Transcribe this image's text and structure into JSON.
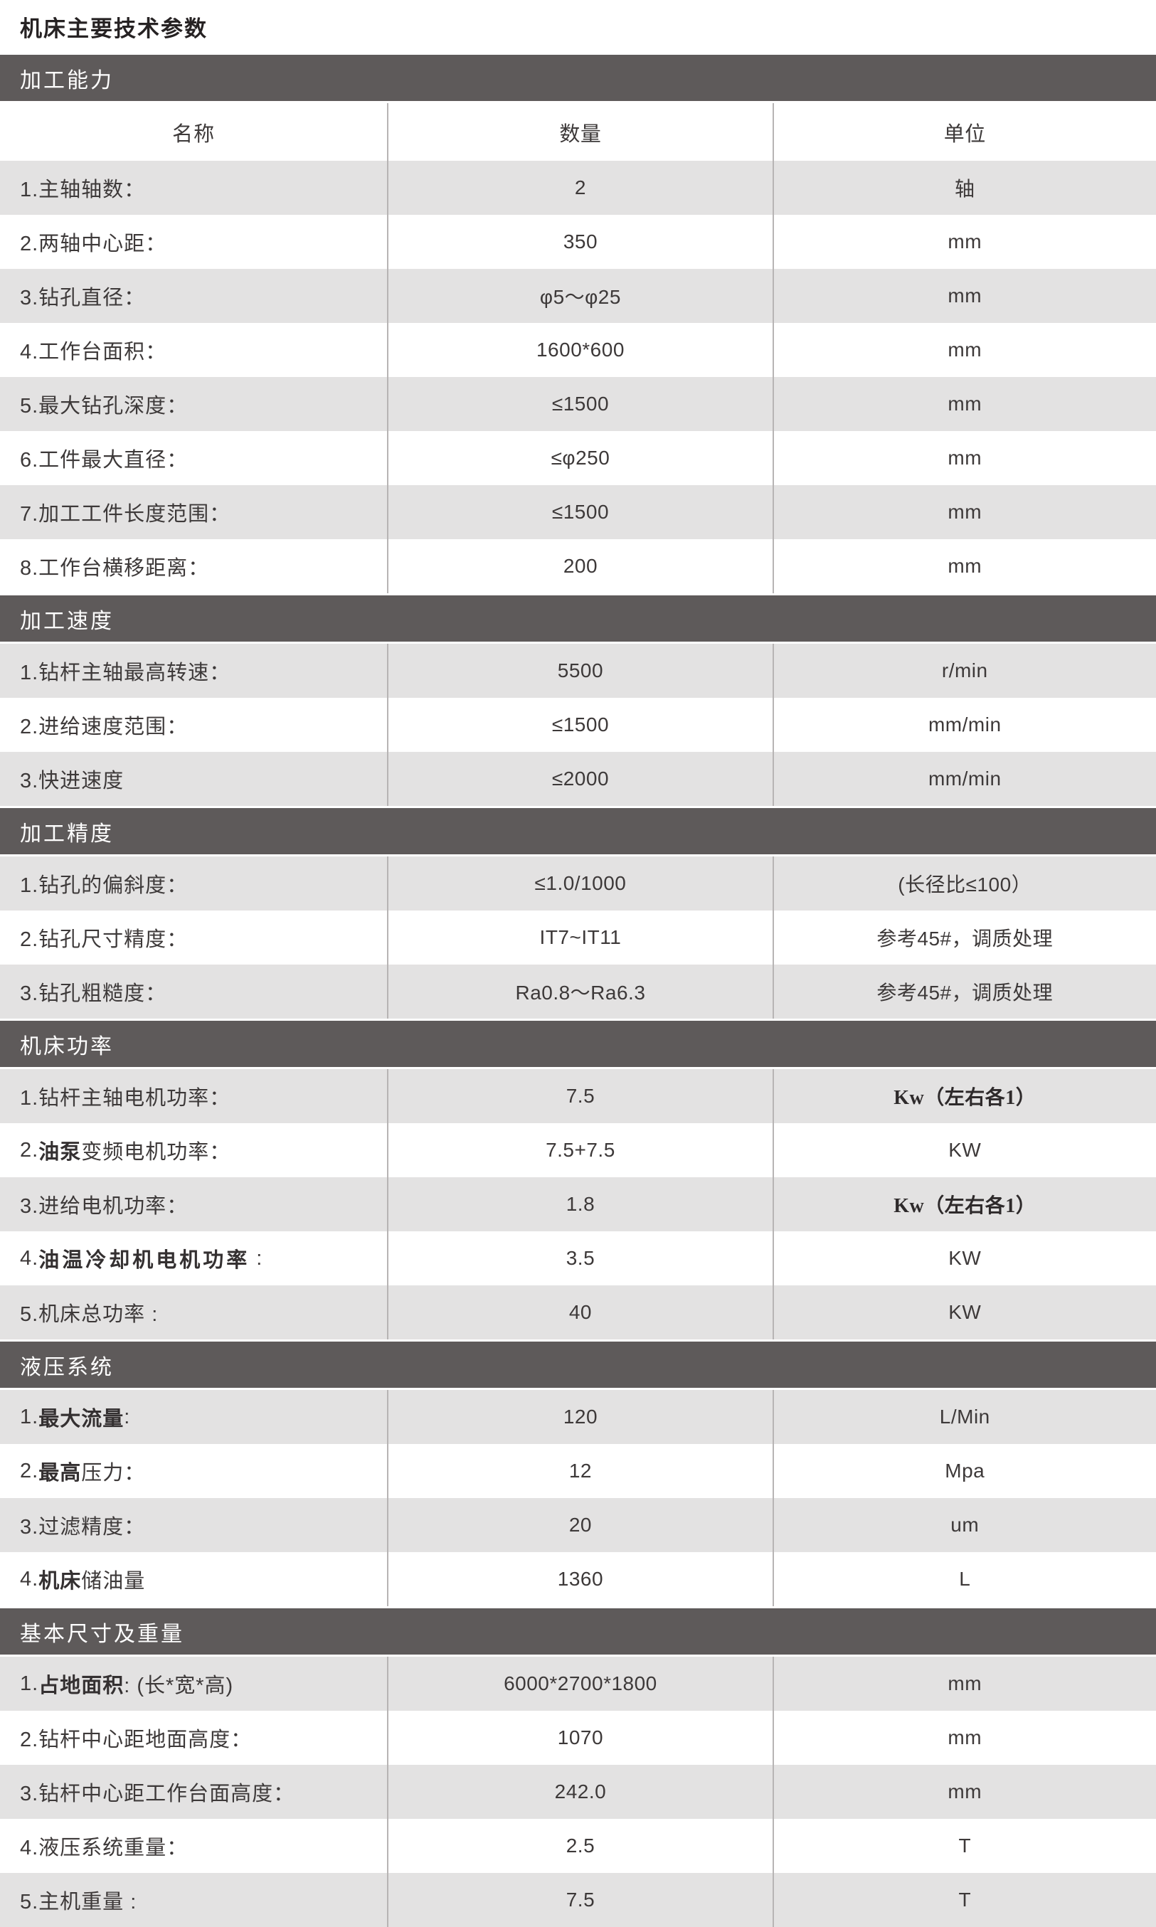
{
  "page": {
    "title": "机床主要技术参数"
  },
  "colors": {
    "section_bar_bg": "#5e5a5a",
    "section_bar_text": "#ffffff",
    "row_gray_bg": "#e3e2e2",
    "row_white_bg": "#ffffff",
    "divider_line": "#b7b4b4",
    "text": "#3d3939"
  },
  "table": {
    "header": {
      "name": "名称",
      "qty": "数量",
      "unit": "单位"
    },
    "sections": [
      {
        "title": "加工能力",
        "has_header": true,
        "rows": [
          {
            "label": [
              "1.主轴轴数："
            ],
            "value": "2",
            "unit": "轴"
          },
          {
            "label": [
              "2.两轴中心距："
            ],
            "value": "350",
            "unit": "mm"
          },
          {
            "label": [
              "3.钻孔直径："
            ],
            "value": "φ5～φ25",
            "unit": "mm"
          },
          {
            "label": [
              "4.工作台面积："
            ],
            "value": "1600*600",
            "unit": "mm"
          },
          {
            "label": [
              "5.最大钻孔深度："
            ],
            "value": "≤1500",
            "unit": "mm"
          },
          {
            "label": [
              "6.工件最大直径："
            ],
            "value": "≤φ250",
            "unit": "mm"
          },
          {
            "label": [
              "7.加工工件长度范围："
            ],
            "value": "≤1500",
            "unit": "mm"
          },
          {
            "label": [
              "8.工作台横移距离："
            ],
            "value": "200",
            "unit": "mm"
          }
        ]
      },
      {
        "title": "加工速度",
        "has_header": false,
        "rows": [
          {
            "label": [
              "1.钻杆主轴最高转速："
            ],
            "value": "5500",
            "unit": "r/min"
          },
          {
            "label": [
              "2.进给速度范围："
            ],
            "value": "≤1500",
            "unit": "mm/min"
          },
          {
            "label": [
              "3.快进速度"
            ],
            "value": "≤2000",
            "unit": "mm/min"
          }
        ]
      },
      {
        "title": "加工精度",
        "has_header": false,
        "rows": [
          {
            "label": [
              "1.钻孔的偏斜度："
            ],
            "value": "≤1.0/1000",
            "unit": "(长径比≤100）"
          },
          {
            "label": [
              "2.钻孔尺寸精度："
            ],
            "value": "IT7~IT11",
            "unit": "参考45#，调质处理"
          },
          {
            "label": [
              "3.钻孔粗糙度："
            ],
            "value": "Ra0.8～Ra6.3",
            "unit": "参考45#，调质处理"
          }
        ]
      },
      {
        "title": "机床功率",
        "has_header": false,
        "rows": [
          {
            "label": [
              "1.钻杆主轴电机功率："
            ],
            "value": "7.5",
            "unit": "Kw（左右各1）",
            "unit_serif": true
          },
          {
            "label": [
              "2.",
              {
                "t": "油泵",
                "b": true
              },
              "变频电机功率："
            ],
            "value": "7.5+7.5",
            "unit": "KW"
          },
          {
            "label": [
              "3.进给电机功率："
            ],
            "value": "1.8",
            "unit": "Kw（左右各1）",
            "unit_serif": true
          },
          {
            "label": [
              "4.",
              {
                "t": "油温冷却机电机功率",
                "b": true,
                "sp": true
              },
              " :"
            ],
            "value": "3.5",
            "unit": "KW"
          },
          {
            "label": [
              "5.机床总功率 :"
            ],
            "value": "40",
            "unit": "KW"
          }
        ]
      },
      {
        "title": "液压系统",
        "has_header": false,
        "rows": [
          {
            "label": [
              "1.",
              {
                "t": "最大流量",
                "b": true
              },
              ":"
            ],
            "value": "120",
            "unit": "L/Min"
          },
          {
            "label": [
              "2.",
              {
                "t": "最高",
                "b": true
              },
              "压力："
            ],
            "value": "12",
            "unit": "Mpa"
          },
          {
            "label": [
              "3.过滤精度："
            ],
            "value": "20",
            "unit": "um"
          },
          {
            "label": [
              "4.",
              {
                "t": "机床",
                "b": true
              },
              "储油量"
            ],
            "value": "1360",
            "unit": "L"
          }
        ]
      },
      {
        "title": "基本尺寸及重量",
        "has_header": false,
        "rows": [
          {
            "label": [
              "1.",
              {
                "t": "占地面积",
                "b": true
              },
              ": (长*宽*高)"
            ],
            "value": "6000*2700*1800",
            "unit": "mm"
          },
          {
            "label": [
              "2.钻杆中心距地面高度："
            ],
            "value": "1070",
            "unit": "mm"
          },
          {
            "label": [
              "3.钻杆中心距工作台面高度："
            ],
            "value": "242.0",
            "unit": "mm"
          },
          {
            "label": [
              "4.液压系统重量："
            ],
            "value": "2.5",
            "unit": "T"
          },
          {
            "label": [
              "5.主机重量 :"
            ],
            "value": "7.5",
            "unit": "T"
          }
        ]
      }
    ]
  }
}
